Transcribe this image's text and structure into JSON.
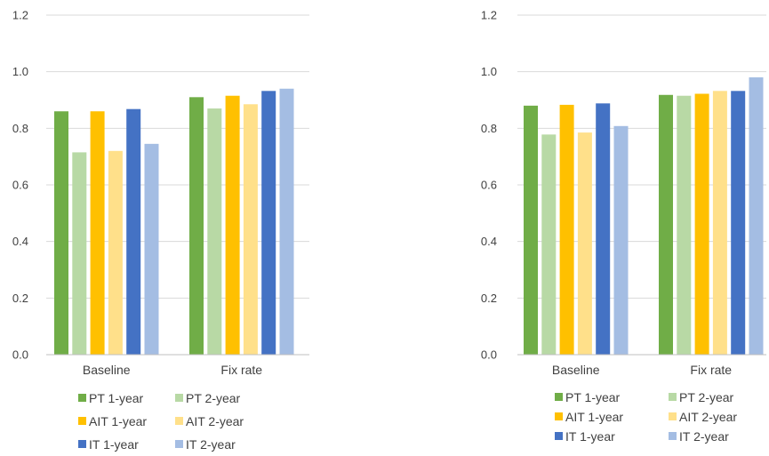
{
  "chart_data": [
    {
      "type": "bar",
      "categories": [
        "Baseline",
        "Fix rate"
      ],
      "ylim": [
        0,
        1.2
      ],
      "yticks": [
        "0.0",
        "0.2",
        "0.4",
        "0.6",
        "0.8",
        "1.0",
        "1.2"
      ],
      "grid": true,
      "legend_position": "bottom",
      "series": [
        {
          "name": "PT 1-year",
          "color": "#70ad47",
          "values": [
            0.86,
            0.91
          ]
        },
        {
          "name": "PT 2-year",
          "color": "#b8d9a5",
          "values": [
            0.715,
            0.87
          ]
        },
        {
          "name": "AIT 1-year",
          "color": "#ffc000",
          "values": [
            0.86,
            0.915
          ]
        },
        {
          "name": "AIT 2-year",
          "color": "#ffe08a",
          "values": [
            0.72,
            0.885
          ]
        },
        {
          "name": "IT 1-year",
          "color": "#4472c4",
          "values": [
            0.868,
            0.932
          ]
        },
        {
          "name": "IT 2-year",
          "color": "#a4bde3",
          "values": [
            0.745,
            0.94
          ]
        }
      ]
    },
    {
      "type": "bar",
      "categories": [
        "Baseline",
        "Fix rate"
      ],
      "ylim": [
        0,
        1.2
      ],
      "yticks": [
        "0.0",
        "0.2",
        "0.4",
        "0.6",
        "0.8",
        "1.0",
        "1.2"
      ],
      "grid": true,
      "legend_position": "bottom",
      "series": [
        {
          "name": "PT 1-year",
          "color": "#70ad47",
          "values": [
            0.88,
            0.918
          ]
        },
        {
          "name": "PT 2-year",
          "color": "#b8d9a5",
          "values": [
            0.778,
            0.915
          ]
        },
        {
          "name": "AIT 1-year",
          "color": "#ffc000",
          "values": [
            0.883,
            0.922
          ]
        },
        {
          "name": "AIT 2-year",
          "color": "#ffe08a",
          "values": [
            0.785,
            0.932
          ]
        },
        {
          "name": "IT 1-year",
          "color": "#4472c4",
          "values": [
            0.888,
            0.932
          ]
        },
        {
          "name": "IT 2-year",
          "color": "#a4bde3",
          "values": [
            0.808,
            0.98
          ]
        }
      ]
    }
  ]
}
